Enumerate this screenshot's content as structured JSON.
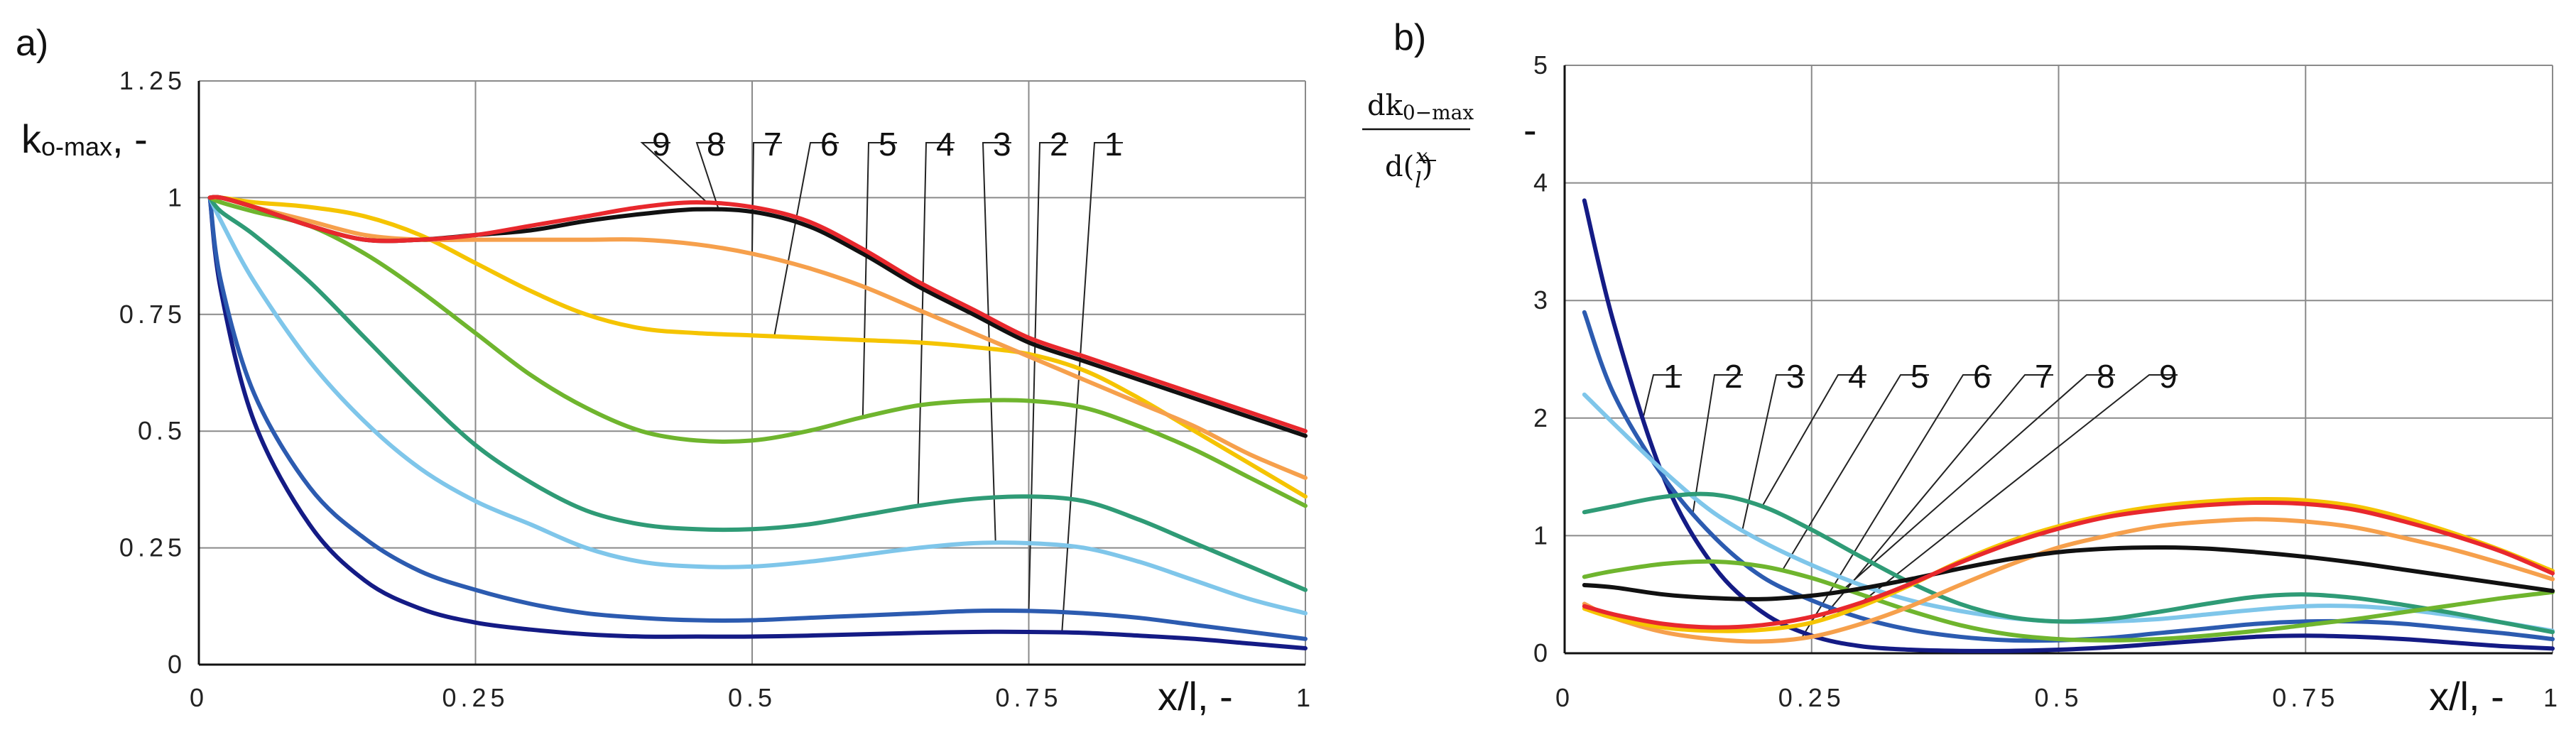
{
  "chart_data": [
    {
      "panel_label": "a)",
      "type": "line",
      "ylabel": "k",
      "ylabel_sub": "o-max",
      "ylabel_suffix": ", -",
      "xlabel": "x/l, -",
      "xlim": [
        0,
        1
      ],
      "ylim": [
        0,
        1.25
      ],
      "xticks": [
        0,
        0.25,
        0.5,
        0.75,
        1
      ],
      "xtick_labels": [
        "0",
        "0.25",
        "0.5",
        "0.75",
        "1"
      ],
      "yticks": [
        0,
        0.25,
        0.5,
        0.75,
        1,
        1.25
      ],
      "ytick_labels": [
        "0",
        "0.25",
        "0.5",
        "0.75",
        "1",
        "1.25"
      ],
      "x": [
        0.01,
        0.02,
        0.05,
        0.1,
        0.15,
        0.2,
        0.25,
        0.3,
        0.35,
        0.4,
        0.45,
        0.5,
        0.55,
        0.6,
        0.65,
        0.7,
        0.75,
        0.8,
        0.85,
        0.9,
        0.95,
        1.0
      ],
      "series": [
        {
          "name": "1",
          "color": "#141b85",
          "values": [
            1.0,
            0.8,
            0.52,
            0.3,
            0.18,
            0.12,
            0.09,
            0.075,
            0.065,
            0.06,
            0.06,
            0.06,
            0.062,
            0.065,
            0.068,
            0.07,
            0.07,
            0.068,
            0.062,
            0.055,
            0.045,
            0.035
          ]
        },
        {
          "name": "2",
          "color": "#2c5bb0",
          "values": [
            1.0,
            0.82,
            0.58,
            0.38,
            0.27,
            0.2,
            0.16,
            0.13,
            0.11,
            0.1,
            0.095,
            0.095,
            0.1,
            0.105,
            0.11,
            0.115,
            0.115,
            0.11,
            0.1,
            0.085,
            0.07,
            0.055
          ]
        },
        {
          "name": "3",
          "color": "#7fc6ea",
          "values": [
            1.0,
            0.95,
            0.82,
            0.65,
            0.52,
            0.42,
            0.35,
            0.3,
            0.25,
            0.22,
            0.21,
            0.21,
            0.22,
            0.235,
            0.25,
            0.26,
            0.26,
            0.25,
            0.22,
            0.18,
            0.14,
            0.11
          ]
        },
        {
          "name": "4",
          "color": "#2f9b76",
          "values": [
            1.0,
            0.97,
            0.92,
            0.82,
            0.7,
            0.58,
            0.47,
            0.39,
            0.33,
            0.3,
            0.29,
            0.29,
            0.3,
            0.32,
            0.34,
            0.355,
            0.36,
            0.35,
            0.31,
            0.26,
            0.21,
            0.16
          ]
        },
        {
          "name": "5",
          "color": "#6fb52e",
          "values": [
            1.0,
            0.99,
            0.97,
            0.94,
            0.88,
            0.8,
            0.71,
            0.62,
            0.55,
            0.5,
            0.48,
            0.48,
            0.5,
            0.53,
            0.555,
            0.565,
            0.565,
            0.55,
            0.51,
            0.46,
            0.4,
            0.34
          ]
        },
        {
          "name": "6",
          "color": "#f5c400",
          "values": [
            1.0,
            1.0,
            0.99,
            0.98,
            0.96,
            0.92,
            0.86,
            0.8,
            0.75,
            0.72,
            0.71,
            0.705,
            0.7,
            0.695,
            0.69,
            0.68,
            0.665,
            0.63,
            0.57,
            0.5,
            0.43,
            0.36
          ]
        },
        {
          "name": "7",
          "color": "#f6a04c",
          "values": [
            1.0,
            1.0,
            0.98,
            0.95,
            0.92,
            0.91,
            0.91,
            0.91,
            0.91,
            0.91,
            0.9,
            0.88,
            0.85,
            0.81,
            0.76,
            0.71,
            0.66,
            0.61,
            0.56,
            0.51,
            0.45,
            0.4
          ]
        },
        {
          "name": "8",
          "color": "#111111",
          "values": [
            1.0,
            1.0,
            0.98,
            0.94,
            0.91,
            0.91,
            0.92,
            0.93,
            0.95,
            0.965,
            0.975,
            0.97,
            0.94,
            0.88,
            0.81,
            0.75,
            0.69,
            0.65,
            0.61,
            0.57,
            0.53,
            0.49
          ]
        },
        {
          "name": "9",
          "color": "#e8282d",
          "values": [
            1.0,
            1.0,
            0.98,
            0.94,
            0.91,
            0.91,
            0.92,
            0.94,
            0.96,
            0.98,
            0.99,
            0.98,
            0.95,
            0.89,
            0.82,
            0.76,
            0.7,
            0.66,
            0.62,
            0.58,
            0.54,
            0.5
          ]
        }
      ]
    },
    {
      "panel_label": "b)",
      "type": "line",
      "ylabel_num": "dk",
      "ylabel_num_sub": "0−max",
      "ylabel_den": "d(x/l)",
      "ylabel_den_open": "d(",
      "ylabel_den_x": "x",
      "ylabel_den_l": "l",
      "ylabel_den_close": ")",
      "ylabel_suffix": "-",
      "xlabel": "x/l, -",
      "xlim": [
        0,
        1
      ],
      "ylim": [
        0,
        5
      ],
      "xticks": [
        0,
        0.25,
        0.5,
        0.75,
        1
      ],
      "xtick_labels": [
        "0",
        "0.25",
        "0.5",
        "0.75",
        "1"
      ],
      "yticks": [
        0,
        1,
        2,
        3,
        4,
        5
      ],
      "ytick_labels": [
        "0",
        "1",
        "2",
        "3",
        "4",
        "5"
      ],
      "x": [
        0.02,
        0.05,
        0.1,
        0.15,
        0.2,
        0.25,
        0.3,
        0.35,
        0.4,
        0.45,
        0.5,
        0.55,
        0.6,
        0.65,
        0.7,
        0.75,
        0.8,
        0.85,
        0.9,
        0.95,
        1.0
      ],
      "series": [
        {
          "name": "1",
          "color": "#141b85",
          "values": [
            3.85,
            2.8,
            1.5,
            0.75,
            0.35,
            0.15,
            0.06,
            0.03,
            0.02,
            0.02,
            0.03,
            0.05,
            0.08,
            0.11,
            0.14,
            0.15,
            0.14,
            0.12,
            0.09,
            0.06,
            0.04
          ]
        },
        {
          "name": "2",
          "color": "#2c5bb0",
          "values": [
            2.9,
            2.2,
            1.5,
            1.0,
            0.65,
            0.45,
            0.3,
            0.2,
            0.14,
            0.11,
            0.11,
            0.13,
            0.17,
            0.21,
            0.25,
            0.27,
            0.27,
            0.25,
            0.21,
            0.17,
            0.12
          ]
        },
        {
          "name": "3",
          "color": "#7fc6ea",
          "values": [
            2.2,
            1.95,
            1.55,
            1.2,
            0.95,
            0.75,
            0.58,
            0.45,
            0.36,
            0.3,
            0.27,
            0.27,
            0.29,
            0.33,
            0.37,
            0.4,
            0.4,
            0.37,
            0.32,
            0.26,
            0.19
          ]
        },
        {
          "name": "4",
          "color": "#2f9b76",
          "values": [
            1.2,
            1.25,
            1.33,
            1.35,
            1.25,
            1.05,
            0.82,
            0.6,
            0.42,
            0.31,
            0.27,
            0.29,
            0.35,
            0.42,
            0.48,
            0.5,
            0.47,
            0.41,
            0.34,
            0.26,
            0.18
          ]
        },
        {
          "name": "5",
          "color": "#6fb52e",
          "values": [
            0.65,
            0.7,
            0.76,
            0.78,
            0.74,
            0.64,
            0.5,
            0.36,
            0.24,
            0.16,
            0.12,
            0.11,
            0.12,
            0.15,
            0.19,
            0.24,
            0.29,
            0.35,
            0.41,
            0.47,
            0.52
          ]
        },
        {
          "name": "6",
          "color": "#f6a04c",
          "values": [
            0.42,
            0.3,
            0.18,
            0.12,
            0.1,
            0.14,
            0.25,
            0.4,
            0.58,
            0.75,
            0.9,
            1.0,
            1.08,
            1.12,
            1.14,
            1.12,
            1.07,
            0.98,
            0.88,
            0.76,
            0.63
          ]
        },
        {
          "name": "7",
          "color": "#f5c400",
          "values": [
            0.38,
            0.3,
            0.22,
            0.19,
            0.2,
            0.26,
            0.4,
            0.58,
            0.78,
            0.95,
            1.08,
            1.18,
            1.25,
            1.29,
            1.31,
            1.3,
            1.25,
            1.15,
            1.02,
            0.87,
            0.7
          ]
        },
        {
          "name": "8",
          "color": "#111111",
          "values": [
            0.58,
            0.56,
            0.5,
            0.47,
            0.46,
            0.49,
            0.55,
            0.63,
            0.72,
            0.8,
            0.86,
            0.89,
            0.9,
            0.89,
            0.86,
            0.82,
            0.77,
            0.71,
            0.65,
            0.59,
            0.53
          ]
        },
        {
          "name": "9",
          "color": "#e8282d",
          "values": [
            0.4,
            0.33,
            0.25,
            0.22,
            0.24,
            0.31,
            0.43,
            0.59,
            0.77,
            0.93,
            1.06,
            1.16,
            1.22,
            1.26,
            1.28,
            1.27,
            1.22,
            1.12,
            1.0,
            0.86,
            0.68
          ]
        }
      ]
    }
  ]
}
